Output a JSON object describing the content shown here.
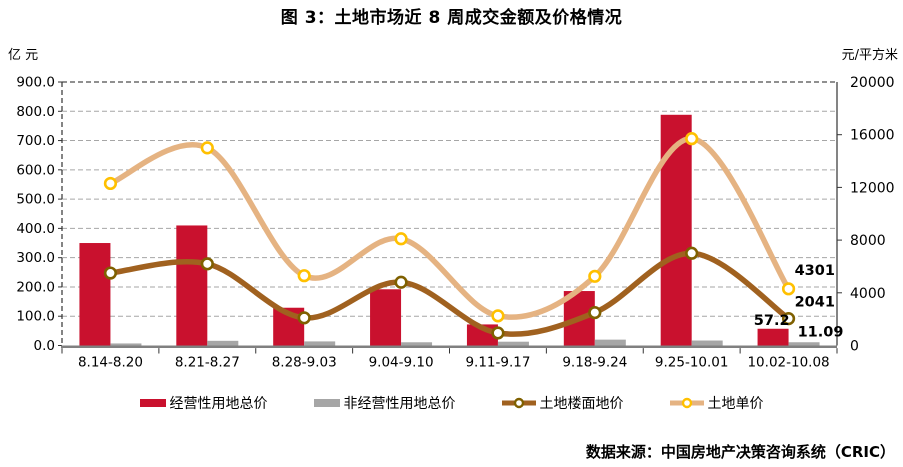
{
  "chart_data": {
    "type": "combo-bar-line",
    "title": "图 3：土地市场近 8 周成交金额及价格情况",
    "source": "数据来源：中国房地产决策咨询系统（CRIC）",
    "left_axis": {
      "unit": "亿 元",
      "min": 0,
      "max": 900,
      "step": 100,
      "decimals": 1
    },
    "right_axis": {
      "unit": "元/平方米",
      "min": 0,
      "max": 20000,
      "step": 4000,
      "decimals": 0
    },
    "categories": [
      "8.14-8.20",
      "8.21-8.27",
      "8.28-9.03",
      "9.04-9.10",
      "9.11-9.17",
      "9.18-9.24",
      "9.25-10.01",
      "10.02-10.08"
    ],
    "series": [
      {
        "name": "经营性用地总价",
        "type": "bar",
        "axis": "left",
        "color": "#C9112E",
        "values": [
          350,
          410,
          129,
          192,
          72,
          186,
          788,
          57.2
        ]
      },
      {
        "name": "非经营性用地总价",
        "type": "bar",
        "axis": "left",
        "color": "#A6A6A6",
        "values": [
          7,
          16,
          14,
          11,
          13,
          20,
          17,
          11.09
        ]
      },
      {
        "name": "土地楼面地价",
        "type": "line",
        "axis": "right",
        "color": "#A0611F",
        "marker_ring": "#7F6000",
        "values": [
          5500,
          6200,
          2100,
          4800,
          950,
          2500,
          7000,
          2041
        ]
      },
      {
        "name": "土地单价",
        "type": "line",
        "axis": "right",
        "color": "#E5B382",
        "marker_ring": "#FFC000",
        "values": [
          12300,
          15000,
          5300,
          8100,
          2250,
          5250,
          15700,
          4301
        ]
      }
    ],
    "end_point_labels": [
      "57.2",
      "11.09",
      "2041",
      "4301"
    ],
    "grid": "dashed-horizontal",
    "legend_position": "bottom"
  }
}
